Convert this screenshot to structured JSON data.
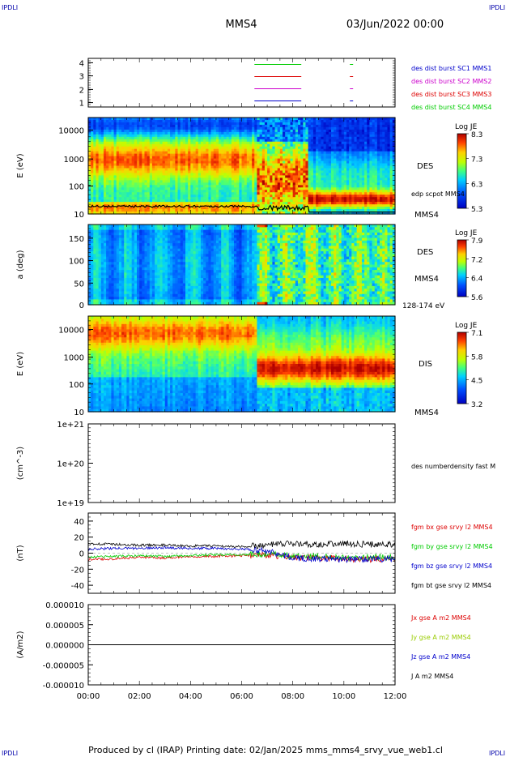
{
  "corner_labels": {
    "tl": "IPDLI",
    "tr": "IPDLI",
    "bl": "IPDLI",
    "br": "IPDLI"
  },
  "header": {
    "spacecraft": "MMS4",
    "datetime": "03/Jun/2022 00:00"
  },
  "footer": {
    "text": "Produced by cl (IRAP)   Printing date: 02/Jan/2025   mms_mms4_srvy_vue_web1.cl"
  },
  "colors": {
    "mms1": "#0000cc",
    "mms2": "#cc00cc",
    "mms3": "#dd0000",
    "mms4": "#00cc00",
    "bt": "#000000"
  },
  "chart_data": [
    {
      "type": "line",
      "panel": "availability",
      "yticks": [
        "4",
        "3",
        "2",
        "1"
      ],
      "ylim": [
        0.5,
        4.5
      ],
      "x": [
        "06:30",
        "08:20"
      ],
      "legend": [
        {
          "name": "des dist burst SC1 MMS1",
          "color": "#0000cc"
        },
        {
          "name": "des dist burst SC2 MMS2",
          "color": "#cc00cc"
        },
        {
          "name": "des dist burst SC3 MMS3",
          "color": "#dd0000"
        },
        {
          "name": "des dist burst SC4 MMS4",
          "color": "#00cc00"
        }
      ]
    },
    {
      "type": "heatmap",
      "panel": "des-energy",
      "ylabel": "E (eV)",
      "yscale": "log",
      "yticks": [
        "10000",
        "1000",
        "100",
        "10"
      ],
      "ylim": [
        10,
        30000
      ],
      "species_label": "DES",
      "overlay_label": "edp scpot MMS4",
      "sc_label": "MMS4",
      "colorbar": {
        "title": "Log JE",
        "ticks": [
          "8.3",
          "7.3",
          "6.3",
          "5.3"
        ],
        "range": [
          5.3,
          8.3
        ]
      }
    },
    {
      "type": "heatmap",
      "panel": "des-pitch",
      "ylabel": "a (deg)",
      "yticks": [
        "150",
        "100",
        "50",
        "0"
      ],
      "ylim": [
        0,
        180
      ],
      "species_label": "DES",
      "sc_label": "MMS4",
      "energy_label": "128-174 eV",
      "colorbar": {
        "title": "Log JE",
        "ticks": [
          "7.9",
          "7.2",
          "6.4",
          "5.6"
        ],
        "range": [
          5.6,
          7.9
        ]
      }
    },
    {
      "type": "heatmap",
      "panel": "dis-energy",
      "ylabel": "E (eV)",
      "yscale": "log",
      "yticks": [
        "10000",
        "1000",
        "100",
        "10"
      ],
      "ylim": [
        10,
        30000
      ],
      "species_label": "DIS",
      "sc_label": "MMS4",
      "colorbar": {
        "title": "Log JE",
        "ticks": [
          "7.1",
          "5.8",
          "4.5",
          "3.2"
        ],
        "range": [
          3.2,
          7.1
        ]
      }
    },
    {
      "type": "line",
      "panel": "density",
      "ylabel": "(cm^-3)",
      "yscale": "log",
      "yticks": [
        "1e+21",
        "1e+20",
        "1e+19"
      ],
      "ylim": [
        1e+19,
        1e+21
      ],
      "legend": [
        {
          "name": "des numberdensity fast M",
          "color": "#000000"
        }
      ]
    },
    {
      "type": "line",
      "panel": "fgm",
      "ylabel": "(nT)",
      "yticks": [
        "40",
        "20",
        "0",
        "-20",
        "-40"
      ],
      "ylim": [
        -50,
        50
      ],
      "x": [
        "00:00",
        "01:00",
        "02:00",
        "03:00",
        "04:00",
        "05:00",
        "06:00",
        "07:00",
        "08:00",
        "09:00",
        "10:00",
        "11:00",
        "12:00"
      ],
      "series": [
        {
          "name": "fgm bx gse srvy l2 MMS4",
          "color": "#dd0000",
          "values": [
            -8,
            -7,
            -5,
            -6,
            -4,
            -4,
            -3,
            -2,
            -5,
            -6,
            -7,
            -8,
            -6
          ]
        },
        {
          "name": "fgm by gse srvy l2 MMS4",
          "color": "#00cc00",
          "values": [
            -5,
            -4,
            -3,
            -4,
            -3,
            -2,
            -2,
            -1,
            -4,
            -4,
            -5,
            -5,
            -5
          ]
        },
        {
          "name": "fgm bz gse srvy l2 MMS4",
          "color": "#0000cc",
          "values": [
            5,
            6,
            6,
            7,
            6,
            6,
            5,
            3,
            -6,
            -7,
            -8,
            -7,
            -8
          ]
        },
        {
          "name": "fgm bt gse srvy l2 MMS4",
          "color": "#000000",
          "values": [
            12,
            11,
            10,
            10,
            9,
            9,
            8,
            10,
            12,
            11,
            12,
            11,
            11
          ]
        }
      ]
    },
    {
      "type": "line",
      "panel": "current",
      "ylabel": "(A/m2)",
      "yticks": [
        "0.000010",
        "0.000005",
        "0.000000",
        "-0.000005",
        "-0.000010"
      ],
      "ylim": [
        -1e-05,
        1e-05
      ],
      "series": [
        {
          "name": "Jx gse A m2 MMS4",
          "color": "#dd0000"
        },
        {
          "name": "Jy gse A m2 MMS4",
          "color": "#99cc00"
        },
        {
          "name": "Jz gse A m2 MMS4",
          "color": "#0000cc"
        },
        {
          "name": "J A m2 MMS4",
          "color": "#000000"
        }
      ]
    }
  ],
  "xaxis": {
    "ticks": [
      "00:00",
      "02:00",
      "04:00",
      "06:00",
      "08:00",
      "10:00",
      "12:00"
    ],
    "xlim": [
      "00:00",
      "12:00"
    ]
  }
}
